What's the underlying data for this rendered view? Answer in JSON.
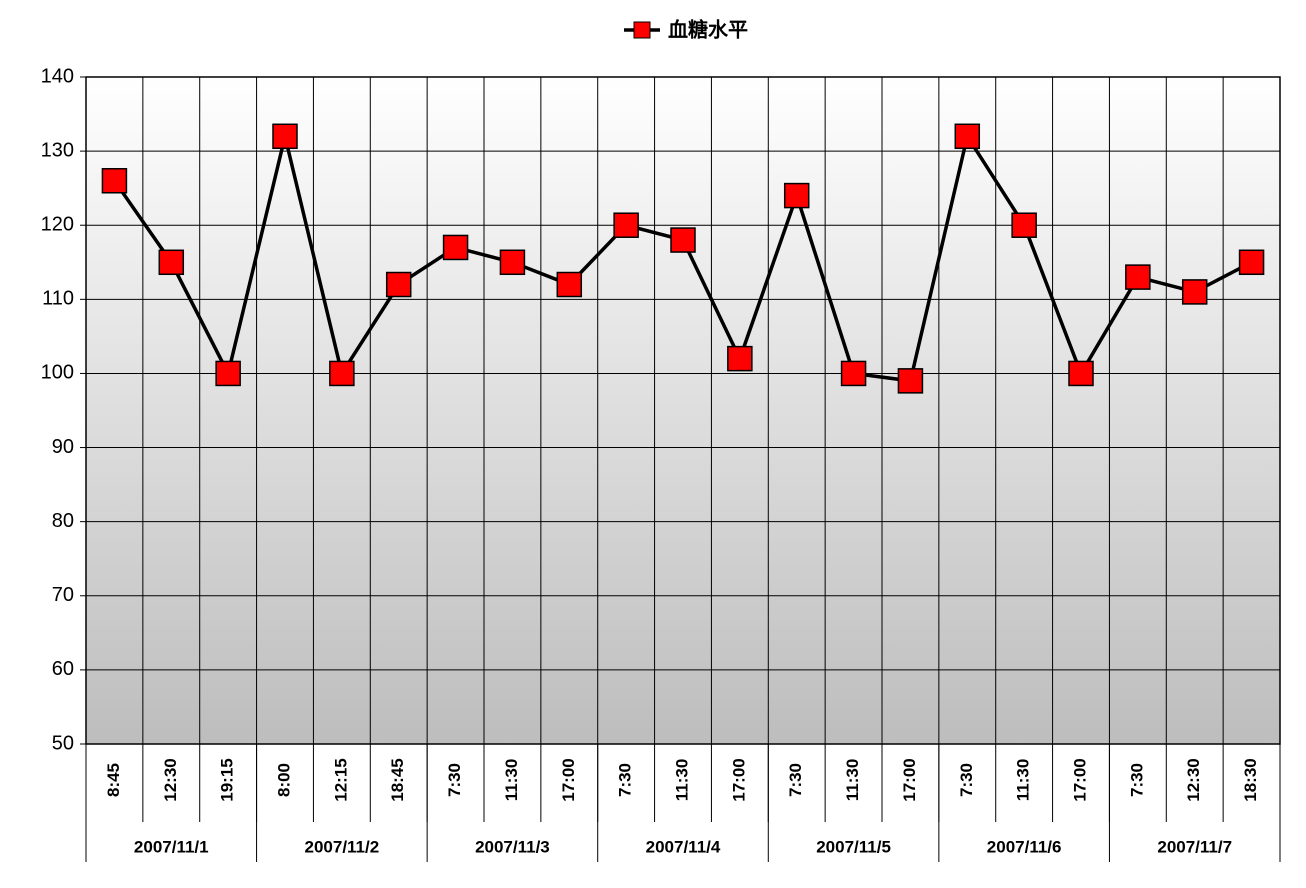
{
  "chart_data": {
    "type": "line",
    "categories": [
      "8:45",
      "12:30",
      "19:15",
      "8:00",
      "12:15",
      "18:45",
      "7:30",
      "11:30",
      "17:00",
      "7:30",
      "11:30",
      "17:00",
      "7:30",
      "11:30",
      "17:00",
      "7:30",
      "11:30",
      "17:00",
      "7:30",
      "12:30",
      "18:30"
    ],
    "category_groups": [
      "2007/11/1",
      "2007/11/2",
      "2007/11/3",
      "2007/11/4",
      "2007/11/5",
      "2007/11/6",
      "2007/11/7"
    ],
    "series": [
      {
        "name": "血糖水平",
        "color": "#ff0000",
        "values": [
          126,
          115,
          100,
          132,
          100,
          112,
          117,
          115,
          112,
          120,
          118,
          102,
          124,
          100,
          99,
          132,
          120,
          100,
          113,
          111,
          115
        ]
      }
    ],
    "ylim": [
      50,
      140
    ],
    "yticks": [
      50,
      60,
      70,
      80,
      90,
      100,
      110,
      120,
      130,
      140
    ],
    "grid": true,
    "legend": "top"
  }
}
